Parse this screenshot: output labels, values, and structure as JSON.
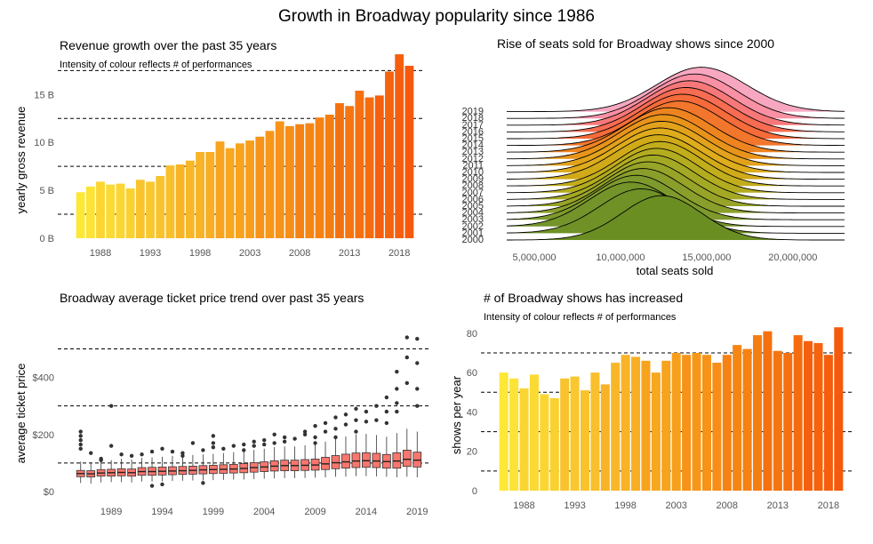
{
  "title": "Growth in Broadway popularity since 1986",
  "chart_data": [
    {
      "id": "revenue",
      "type": "bar",
      "title": "Revenue growth over the past 35 years",
      "subtitle": "Intensity of colour reflects # of performances",
      "ylabel": "yearly gross revenue",
      "xlabel": "",
      "ylim": [
        0,
        19.3
      ],
      "yticks": [
        0,
        5,
        10,
        15
      ],
      "ytick_labels": [
        "0 B",
        "5 B",
        "10 B",
        "15 B"
      ],
      "xticks": [
        1988,
        1993,
        1998,
        2003,
        2008,
        2013,
        2018
      ],
      "hlines": [
        2.5,
        7.5,
        12.5,
        17.5
      ],
      "grid": false,
      "x": [
        1986,
        1987,
        1988,
        1989,
        1990,
        1991,
        1992,
        1993,
        1994,
        1995,
        1996,
        1997,
        1998,
        1999,
        2000,
        2001,
        2002,
        2003,
        2004,
        2005,
        2006,
        2007,
        2008,
        2009,
        2010,
        2011,
        2012,
        2013,
        2014,
        2015,
        2016,
        2017,
        2018,
        2019
      ],
      "values": [
        4.8,
        5.4,
        5.9,
        5.6,
        5.7,
        5.2,
        6.1,
        5.9,
        6.5,
        7.6,
        7.7,
        8.1,
        9.0,
        9.0,
        10.1,
        9.4,
        9.9,
        10.2,
        10.6,
        11.2,
        12.2,
        11.7,
        11.9,
        12.0,
        12.6,
        12.9,
        14.1,
        13.8,
        15.4,
        14.7,
        14.9,
        17.4,
        19.2,
        18.0
      ]
    },
    {
      "id": "seats",
      "type": "area",
      "subtype": "ridgeline",
      "title": "Rise of seats sold for Broadway shows since 2000",
      "xlabel": "total seats sold",
      "ylabel": "",
      "xlim": [
        3400000,
        23000000
      ],
      "xticks": [
        5000000,
        10000000,
        15000000,
        20000000
      ],
      "xtick_labels": [
        "5,000,000",
        "10,000,000",
        "15,000,000",
        "20,000,000"
      ],
      "years": [
        2000,
        2001,
        2002,
        2003,
        2004,
        2005,
        2006,
        2007,
        2008,
        2009,
        2010,
        2011,
        2012,
        2013,
        2014,
        2015,
        2016,
        2017,
        2018,
        2019
      ],
      "peak": [
        12400000,
        11200000,
        10600000,
        10900000,
        11300000,
        11600000,
        11900000,
        12100000,
        12300000,
        12200000,
        12300000,
        12400000,
        12500000,
        12800000,
        13400000,
        13600000,
        13800000,
        14000000,
        14300000,
        14700000
      ],
      "spread": [
        2300000,
        2400000,
        2400000,
        2400000,
        2400000,
        2400000,
        2400000,
        2400000,
        2400000,
        2500000,
        2500000,
        2500000,
        2500000,
        2500000,
        2500000,
        2500000,
        2500000,
        2500000,
        2500000,
        2600000
      ],
      "colors": [
        "#6b8e23",
        "#6f9126",
        "#74942a",
        "#7e9a2c",
        "#8a9f2b",
        "#97a428",
        "#a4a925",
        "#b3ac20",
        "#c2ad1c",
        "#d1aa19",
        "#deac1c",
        "#e3a21c",
        "#e8941a",
        "#ee8420",
        "#f2762c",
        "#f56b3a",
        "#f76c52",
        "#f8787a",
        "#fa90a4",
        "#f7a8c0"
      ]
    },
    {
      "id": "ticket",
      "type": "box",
      "title": "Broadway average ticket price trend over past 35 years",
      "ylabel": "average ticket price",
      "xlabel": "",
      "ylim": [
        0,
        545
      ],
      "yticks": [
        0,
        200,
        400
      ],
      "ytick_labels": [
        "$0",
        "$200",
        "$400"
      ],
      "xticks": [
        1989,
        1994,
        1999,
        2004,
        2009,
        2014,
        2019
      ],
      "hlines": [
        100,
        300,
        500
      ],
      "box_color": "#f8766d",
      "x": [
        1986,
        1987,
        1988,
        1989,
        1990,
        1991,
        1992,
        1993,
        1994,
        1995,
        1996,
        1997,
        1998,
        1999,
        2000,
        2001,
        2002,
        2003,
        2004,
        2005,
        2006,
        2007,
        2008,
        2009,
        2010,
        2011,
        2012,
        2013,
        2014,
        2015,
        2016,
        2017,
        2018,
        2019
      ],
      "median": [
        63,
        62,
        65,
        66,
        67,
        66,
        70,
        70,
        71,
        72,
        73,
        74,
        76,
        77,
        78,
        79,
        81,
        84,
        86,
        89,
        91,
        91,
        92,
        93,
        97,
        101,
        104,
        107,
        108,
        107,
        105,
        107,
        113,
        110
      ],
      "q1": [
        52,
        51,
        54,
        54,
        55,
        54,
        57,
        57,
        58,
        59,
        60,
        61,
        62,
        63,
        64,
        65,
        66,
        68,
        70,
        72,
        73,
        73,
        74,
        75,
        77,
        80,
        82,
        84,
        85,
        84,
        82,
        82,
        88,
        86
      ],
      "q3": [
        74,
        73,
        77,
        78,
        80,
        79,
        84,
        85,
        86,
        87,
        88,
        89,
        91,
        92,
        94,
        95,
        98,
        101,
        104,
        108,
        110,
        110,
        112,
        114,
        120,
        126,
        131,
        135,
        136,
        134,
        130,
        136,
        145,
        138
      ],
      "wlow": [
        30,
        28,
        32,
        33,
        33,
        32,
        35,
        35,
        36,
        37,
        38,
        39,
        39,
        40,
        41,
        42,
        42,
        44,
        45,
        46,
        47,
        47,
        48,
        49,
        50,
        52,
        52,
        54,
        54,
        53,
        52,
        50,
        52,
        50
      ],
      "whigh": [
        105,
        102,
        108,
        110,
        115,
        112,
        118,
        120,
        122,
        125,
        125,
        128,
        130,
        132,
        135,
        138,
        142,
        146,
        150,
        156,
        158,
        158,
        162,
        165,
        175,
        185,
        193,
        200,
        202,
        198,
        192,
        205,
        220,
        210
      ],
      "outliers": [
        [
          210,
          195,
          180,
          165,
          150
        ],
        [
          135
        ],
        [
          115,
          110
        ],
        [
          300,
          160
        ],
        [
          130
        ],
        [
          125
        ],
        [
          130
        ],
        [
          140,
          20
        ],
        [
          150,
          25
        ],
        [
          140
        ],
        [
          135,
          125
        ],
        [
          170
        ],
        [
          145,
          30
        ],
        [
          195,
          170,
          155
        ],
        [
          150
        ],
        [
          160
        ],
        [
          165,
          145
        ],
        [
          175,
          160
        ],
        [
          165,
          180
        ],
        [
          200,
          170
        ],
        [
          190,
          175
        ],
        [
          185
        ],
        [
          210,
          200
        ],
        [
          230,
          190,
          170
        ],
        [
          240,
          210
        ],
        [
          260,
          220,
          190
        ],
        [
          270,
          235
        ],
        [
          290,
          250,
          210
        ],
        [
          280,
          245
        ],
        [
          300,
          250
        ],
        [
          330,
          280,
          240
        ],
        [
          420,
          360,
          310,
          280
        ],
        [
          540,
          470,
          380
        ],
        [
          535,
          450,
          360,
          300
        ]
      ]
    },
    {
      "id": "shows",
      "type": "bar",
      "title": "# of Broadway shows has increased",
      "subtitle": "Intensity of colour reflects # of performances",
      "ylabel": "shows per year",
      "xlabel": "",
      "ylim": [
        0,
        84
      ],
      "yticks": [
        0,
        20,
        40,
        60,
        80
      ],
      "ytick_labels": [
        "0",
        "20",
        "40",
        "60",
        "80"
      ],
      "xticks": [
        1988,
        1993,
        1998,
        2003,
        2008,
        2013,
        2018
      ],
      "hlines": [
        10,
        30,
        50,
        70
      ],
      "grid": false,
      "x": [
        1986,
        1987,
        1988,
        1989,
        1990,
        1991,
        1992,
        1993,
        1994,
        1995,
        1996,
        1997,
        1998,
        1999,
        2000,
        2001,
        2002,
        2003,
        2004,
        2005,
        2006,
        2007,
        2008,
        2009,
        2010,
        2011,
        2012,
        2013,
        2014,
        2015,
        2016,
        2017,
        2018,
        2019
      ],
      "values": [
        60,
        57,
        52,
        59,
        49,
        47,
        57,
        58,
        51,
        60,
        54,
        65,
        69,
        68,
        66,
        60,
        66,
        70,
        69,
        70,
        69,
        65,
        69,
        74,
        72,
        79,
        81,
        71,
        70,
        79,
        76,
        75,
        69,
        83
      ]
    }
  ]
}
